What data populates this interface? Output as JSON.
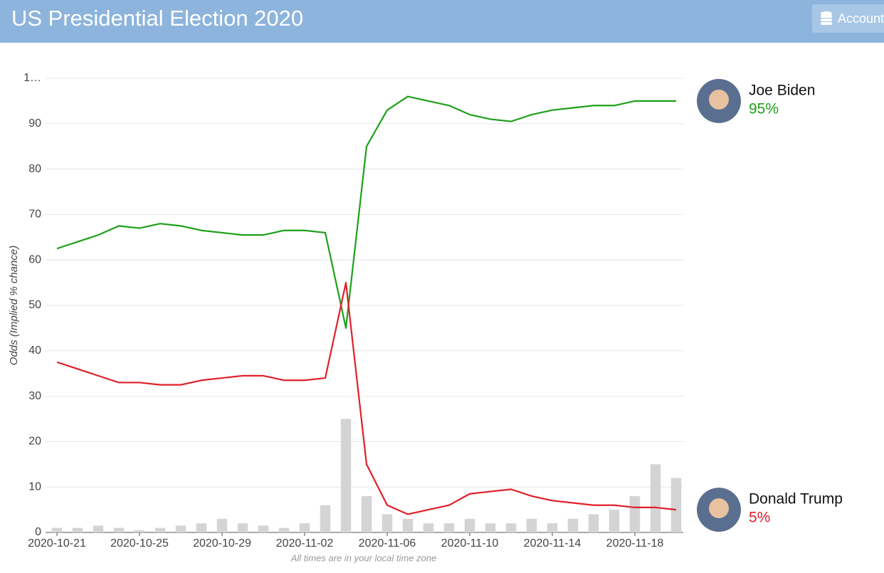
{
  "header": {
    "title": "US Presidential Election 2020",
    "button": "Account"
  },
  "chart_data": {
    "type": "line",
    "y_label": "Odds (Implied % chance)",
    "note": "All times are in your local time zone",
    "x": [
      "2020-10-21",
      "2020-10-22",
      "2020-10-23",
      "2020-10-24",
      "2020-10-25",
      "2020-10-26",
      "2020-10-27",
      "2020-10-28",
      "2020-10-29",
      "2020-10-30",
      "2020-10-31",
      "2020-11-01",
      "2020-11-02",
      "2020-11-03",
      "2020-11-04",
      "2020-11-05",
      "2020-11-06",
      "2020-11-07",
      "2020-11-08",
      "2020-11-09",
      "2020-11-10",
      "2020-11-11",
      "2020-11-12",
      "2020-11-13",
      "2020-11-14",
      "2020-11-15",
      "2020-11-16",
      "2020-11-17",
      "2020-11-18",
      "2020-11-19",
      "2020-11-20"
    ],
    "xlim": [
      "2020-10-20",
      "2020-11-20"
    ],
    "xticks": [
      "2020-10-21",
      "2020-10-25",
      "2020-10-29",
      "2020-11-02",
      "2020-11-06",
      "2020-11-10",
      "2020-11-14",
      "2020-11-18"
    ],
    "ylim": [
      0,
      100
    ],
    "yticks": [
      0,
      10,
      20,
      30,
      40,
      50,
      60,
      70,
      80,
      90,
      {
        "value": 100,
        "label": "1…"
      }
    ],
    "grid": true,
    "series": [
      {
        "name": "Joe Biden",
        "color": "#1ea01a",
        "current": {
          "value": 95,
          "label": "95%"
        },
        "values": [
          62.5,
          64,
          65.5,
          67.5,
          67,
          68,
          67.5,
          66.5,
          66,
          65.5,
          65.5,
          66.5,
          66.5,
          66,
          45,
          85,
          93,
          96,
          95,
          94,
          92,
          91,
          90.5,
          92,
          93,
          93.5,
          94,
          94,
          95,
          95,
          95
        ]
      },
      {
        "name": "Donald Trump",
        "color": "#e0202a",
        "current": {
          "value": 5,
          "label": "5%"
        },
        "values": [
          37.5,
          36,
          34.5,
          33,
          33,
          32.5,
          32.5,
          33.5,
          34,
          34.5,
          34.5,
          33.5,
          33.5,
          34,
          55,
          15,
          6,
          4,
          5,
          6,
          8.5,
          9,
          9.5,
          8,
          7,
          6.5,
          6,
          6,
          5.5,
          5.5,
          5
        ]
      }
    ],
    "volume": {
      "color": "#d4d4d4",
      "values": [
        1,
        1,
        1.5,
        1,
        0.5,
        1,
        1.5,
        2,
        3,
        2,
        1.5,
        1,
        2,
        6,
        25,
        8,
        4,
        3,
        2,
        2,
        3,
        2,
        2,
        3,
        2,
        3,
        4,
        5,
        8,
        15,
        12
      ]
    }
  }
}
